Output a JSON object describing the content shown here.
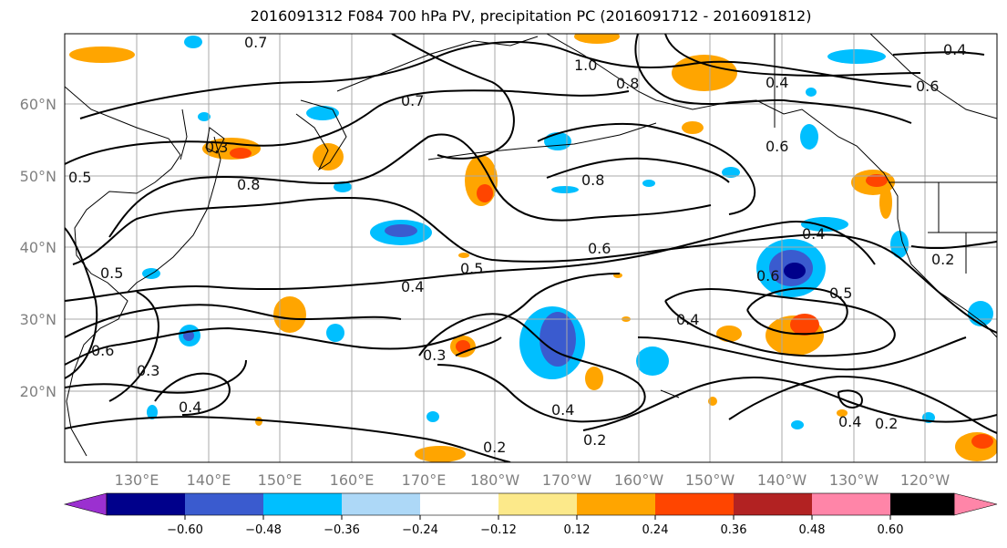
{
  "title": "2016091312 F084 700 hPa PV, precipitation PC (2016091712 - 2016091812)",
  "map": {
    "lat_labels": [
      "60°N",
      "50°N",
      "40°N",
      "30°N",
      "20°N"
    ],
    "lon_labels": [
      "130°E",
      "140°E",
      "150°E",
      "160°E",
      "170°E",
      "180°W",
      "170°W",
      "160°W",
      "150°W",
      "140°W",
      "130°W",
      "120°W"
    ],
    "pv_contour_labels": [
      "0.7",
      "1.0",
      "0.8",
      "0.3",
      "0.4",
      "0.7",
      "0.5",
      "0.8",
      "0.8",
      "0.6",
      "0.4",
      "0.5",
      "0.6",
      "0.5",
      "0.4",
      "0.6",
      "0.4",
      "0.5",
      "0.2",
      "0.4",
      "0.3",
      "0.4",
      "0.2",
      "0.2",
      "0.4",
      "0.2",
      "0.3",
      "0.6",
      "0.6",
      "0.4"
    ]
  },
  "colorbar": {
    "ticks": [
      "−0.60",
      "−0.48",
      "−0.36",
      "−0.24",
      "−0.12",
      "0.12",
      "0.24",
      "0.36",
      "0.48",
      "0.60"
    ],
    "colors": [
      "#9b30d0",
      "#00008b",
      "#3a5bcf",
      "#00bfff",
      "#add8f7",
      "#ffffff",
      "#fce98a",
      "#ffa500",
      "#ff4500",
      "#b22222",
      "#ff85a8"
    ]
  }
}
